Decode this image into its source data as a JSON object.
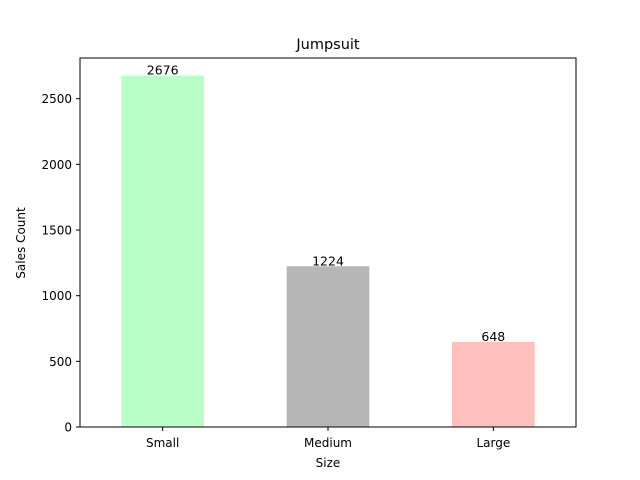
{
  "chart_data": {
    "type": "bar",
    "title": "Jumpsuit",
    "xlabel": "Size",
    "ylabel": "Sales Count",
    "categories": [
      "Small",
      "Medium",
      "Large"
    ],
    "values": [
      2676,
      1224,
      648
    ],
    "data_labels": [
      "2676",
      "1224",
      "648"
    ],
    "colors": [
      "#bbffc8",
      "#b8b7b7",
      "#ffc0bd"
    ],
    "ylim": [
      0,
      2810
    ],
    "yticks": [
      0,
      500,
      1000,
      1500,
      2000,
      2500
    ],
    "ytick_labels": [
      "0",
      "500",
      "1000",
      "1500",
      "2000",
      "2500"
    ],
    "grid": false,
    "legend": "none"
  }
}
